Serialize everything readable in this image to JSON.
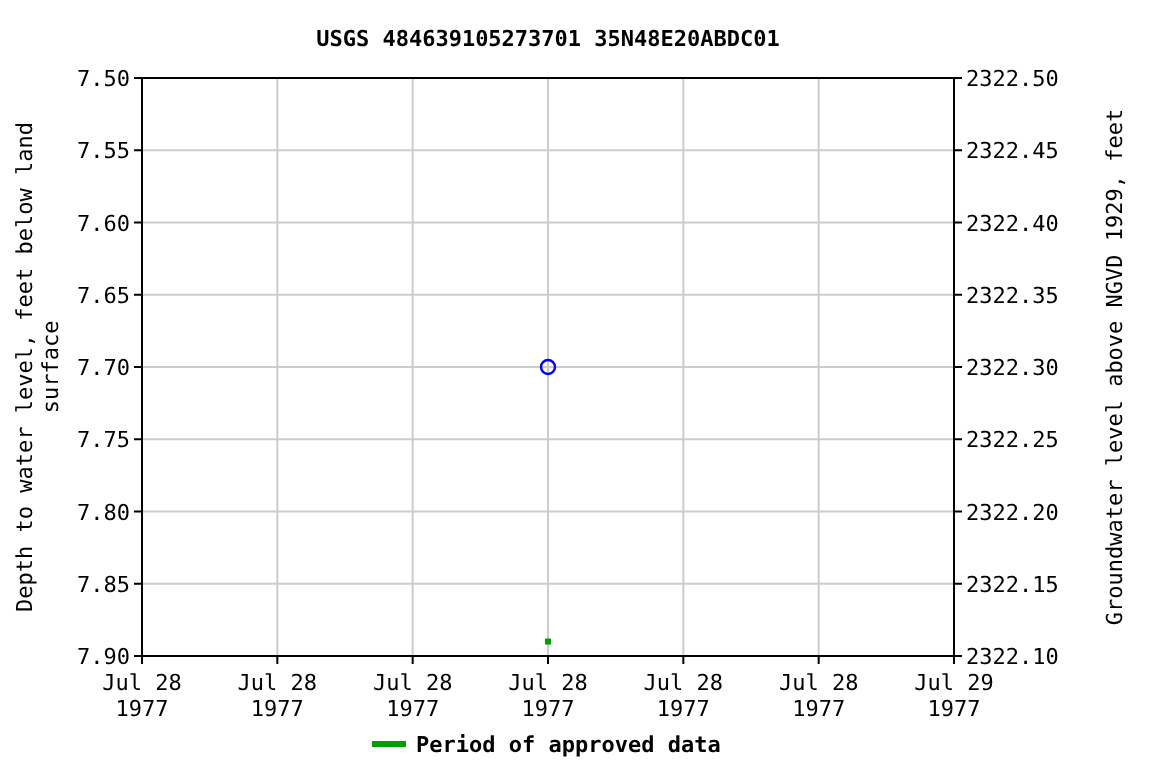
{
  "chart_data": {
    "type": "scatter",
    "title": "USGS 484639105273701 35N48E20ABDC01",
    "ylabel": "Depth to water level, feet below land surface",
    "y2label": "Groundwater level above NGVD 1929, feet",
    "xlim": [
      "1977-07-28T00:00",
      "1977-07-29T00:00"
    ],
    "xticks": [
      {
        "value": "1977-07-28T00:00",
        "label": "Jul 28\n1977"
      },
      {
        "value": "1977-07-28T04:00",
        "label": "Jul 28\n1977"
      },
      {
        "value": "1977-07-28T08:00",
        "label": "Jul 28\n1977"
      },
      {
        "value": "1977-07-28T12:00",
        "label": "Jul 28\n1977"
      },
      {
        "value": "1977-07-28T16:00",
        "label": "Jul 28\n1977"
      },
      {
        "value": "1977-07-28T20:00",
        "label": "Jul 28\n1977"
      },
      {
        "value": "1977-07-29T00:00",
        "label": "Jul 29\n1977"
      }
    ],
    "ylim": [
      7.9,
      7.5
    ],
    "yticks": [
      {
        "value": 7.5,
        "label": "7.50"
      },
      {
        "value": 7.55,
        "label": "7.55"
      },
      {
        "value": 7.6,
        "label": "7.60"
      },
      {
        "value": 7.65,
        "label": "7.65"
      },
      {
        "value": 7.7,
        "label": "7.70"
      },
      {
        "value": 7.75,
        "label": "7.75"
      },
      {
        "value": 7.8,
        "label": "7.80"
      },
      {
        "value": 7.85,
        "label": "7.85"
      },
      {
        "value": 7.9,
        "label": "7.90"
      }
    ],
    "y2lim": [
      2322.1,
      2322.5
    ],
    "y2ticks": [
      {
        "value": 2322.5,
        "label": "2322.50"
      },
      {
        "value": 2322.45,
        "label": "2322.45"
      },
      {
        "value": 2322.4,
        "label": "2322.40"
      },
      {
        "value": 2322.35,
        "label": "2322.35"
      },
      {
        "value": 2322.3,
        "label": "2322.30"
      },
      {
        "value": 2322.25,
        "label": "2322.25"
      },
      {
        "value": 2322.2,
        "label": "2322.20"
      },
      {
        "value": 2322.15,
        "label": "2322.15"
      },
      {
        "value": 2322.1,
        "label": "2322.10"
      }
    ],
    "grid": true,
    "legend": "bottom",
    "series": [
      {
        "color": "#0000ff",
        "marker": "circle",
        "x": [
          "1977-07-28T12:00"
        ],
        "values": [
          7.7
        ]
      },
      {
        "name": "Period of approved data",
        "color": "#00a000",
        "marker": "square",
        "x": [
          "1977-07-28T12:00"
        ],
        "values": [
          7.89
        ]
      }
    ]
  }
}
